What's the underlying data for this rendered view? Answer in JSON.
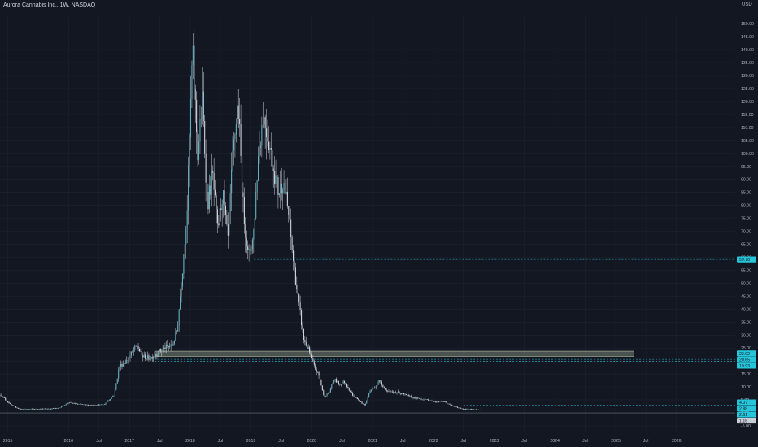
{
  "header": {
    "title": "Aurora Cannabis Inc., 1W, NASDAQ",
    "currency": "USD"
  },
  "colors": {
    "background": "#131722",
    "grid": "#1e222d",
    "axis_text": "#b2b5be",
    "candle": "#5fb3bf",
    "wick": "#d1d4dc",
    "level_line": "#26c6da",
    "zone_fill": "#b5c4a8",
    "last_price": "#c8ccd4"
  },
  "chart_data": {
    "type": "candlestick",
    "title": "Aurora Cannabis Inc., 1W, NASDAQ",
    "ylabel": "USD",
    "ylim": [
      -7.5,
      153.5
    ],
    "xlim": [
      "2014-11-15",
      "2026-12-20"
    ],
    "grid": true,
    "y_ticks": [
      -5,
      0,
      5,
      10,
      15,
      20,
      25,
      30,
      35,
      40,
      45,
      50,
      55,
      60,
      65,
      70,
      75,
      80,
      85,
      90,
      95,
      100,
      105,
      110,
      115,
      120,
      125,
      130,
      135,
      140,
      145,
      150
    ],
    "x_ticks": [
      {
        "label": "2015",
        "date": "2015-01-01"
      },
      {
        "label": "2016",
        "date": "2016-01-01"
      },
      {
        "label": "Jul",
        "date": "2016-07-01"
      },
      {
        "label": "2017",
        "date": "2017-01-01"
      },
      {
        "label": "Jul",
        "date": "2017-07-01"
      },
      {
        "label": "2018",
        "date": "2018-01-01"
      },
      {
        "label": "Jul",
        "date": "2018-07-01"
      },
      {
        "label": "2019",
        "date": "2019-01-01"
      },
      {
        "label": "Jul",
        "date": "2019-07-01"
      },
      {
        "label": "2020",
        "date": "2020-01-01"
      },
      {
        "label": "Jul",
        "date": "2020-07-01"
      },
      {
        "label": "2021",
        "date": "2021-01-01"
      },
      {
        "label": "Jul",
        "date": "2021-07-01"
      },
      {
        "label": "2022",
        "date": "2022-01-01"
      },
      {
        "label": "Jul",
        "date": "2022-07-01"
      },
      {
        "label": "2023",
        "date": "2023-01-01"
      },
      {
        "label": "Jul",
        "date": "2023-07-01"
      },
      {
        "label": "2024",
        "date": "2024-01-01"
      },
      {
        "label": "Jul",
        "date": "2024-07-01"
      },
      {
        "label": "2025",
        "date": "2025-01-01"
      },
      {
        "label": "Jul",
        "date": "2025-07-01"
      },
      {
        "label": "2026",
        "date": "2026-01-01"
      }
    ],
    "price_path": [
      [
        "2014-11-20",
        7.0
      ],
      [
        "2014-12-20",
        5.0
      ],
      [
        "2015-01-20",
        3.0
      ],
      [
        "2015-03-15",
        1.5
      ],
      [
        "2015-06-01",
        1.5
      ],
      [
        "2015-09-01",
        1.6
      ],
      [
        "2015-11-01",
        1.8
      ],
      [
        "2016-01-01",
        4.0
      ],
      [
        "2016-02-15",
        3.5
      ],
      [
        "2016-05-01",
        3.0
      ],
      [
        "2016-08-01",
        3.2
      ],
      [
        "2016-10-01",
        7.0
      ],
      [
        "2016-11-01",
        18.0
      ],
      [
        "2016-12-15",
        20.0
      ],
      [
        "2017-01-15",
        23.0
      ],
      [
        "2017-02-15",
        26.0
      ],
      [
        "2017-03-15",
        22.0
      ],
      [
        "2017-05-01",
        21.0
      ],
      [
        "2017-06-15",
        23.0
      ],
      [
        "2017-08-01",
        25.0
      ],
      [
        "2017-09-15",
        26.0
      ],
      [
        "2017-10-15",
        32.0
      ],
      [
        "2017-11-15",
        55.0
      ],
      [
        "2017-12-15",
        80.0
      ],
      [
        "2018-01-15",
        140.0
      ],
      [
        "2018-02-15",
        100.0
      ],
      [
        "2018-03-15",
        120.0
      ],
      [
        "2018-04-15",
        80.0
      ],
      [
        "2018-05-15",
        92.0
      ],
      [
        "2018-06-15",
        70.0
      ],
      [
        "2018-07-15",
        85.0
      ],
      [
        "2018-08-15",
        66.0
      ],
      [
        "2018-09-15",
        100.0
      ],
      [
        "2018-10-15",
        120.0
      ],
      [
        "2018-11-15",
        80.0
      ],
      [
        "2018-12-15",
        60.0
      ],
      [
        "2019-01-15",
        68.0
      ],
      [
        "2019-02-15",
        100.0
      ],
      [
        "2019-03-15",
        115.0
      ],
      [
        "2019-04-15",
        106.0
      ],
      [
        "2019-05-15",
        95.0
      ],
      [
        "2019-06-15",
        85.0
      ],
      [
        "2019-07-15",
        90.0
      ],
      [
        "2019-08-15",
        76.0
      ],
      [
        "2019-09-15",
        57.0
      ],
      [
        "2019-10-15",
        42.0
      ],
      [
        "2019-11-15",
        28.0
      ],
      [
        "2019-12-15",
        24.0
      ],
      [
        "2020-01-15",
        18.0
      ],
      [
        "2020-02-15",
        14.0
      ],
      [
        "2020-03-15",
        6.0
      ],
      [
        "2020-04-15",
        8.0
      ],
      [
        "2020-05-15",
        13.0
      ],
      [
        "2020-06-15",
        11.0
      ],
      [
        "2020-07-15",
        12.0
      ],
      [
        "2020-09-01",
        7.0
      ],
      [
        "2020-10-15",
        4.5
      ],
      [
        "2020-11-15",
        2.8
      ],
      [
        "2020-12-15",
        8.5
      ],
      [
        "2021-01-15",
        10.0
      ],
      [
        "2021-02-15",
        12.5
      ],
      [
        "2021-03-15",
        9.0
      ],
      [
        "2021-04-15",
        8.0
      ],
      [
        "2021-06-01",
        8.0
      ],
      [
        "2021-08-01",
        6.5
      ],
      [
        "2021-10-01",
        5.5
      ],
      [
        "2021-12-01",
        5.0
      ],
      [
        "2022-01-15",
        4.2
      ],
      [
        "2022-03-01",
        4.5
      ],
      [
        "2022-05-01",
        2.5
      ],
      [
        "2022-07-01",
        1.5
      ],
      [
        "2022-09-01",
        1.3
      ],
      [
        "2022-10-15",
        1.16
      ]
    ],
    "price_labels": [
      {
        "value": 59.18,
        "text": "59.18",
        "style": "level"
      },
      {
        "value": 22.92,
        "text": "22.92",
        "style": "level"
      },
      {
        "value": 20.65,
        "text": "20.65",
        "style": "level"
      },
      {
        "value": 19.93,
        "text": "19.93",
        "style": "level"
      },
      {
        "value": 4.07,
        "text": "4.07",
        "style": "level"
      },
      {
        "value": 2.88,
        "text": "2.88",
        "style": "level"
      },
      {
        "value": 2.61,
        "text": "2.61",
        "style": "level"
      },
      {
        "value": 1.16,
        "text": "1.16",
        "style": "last"
      }
    ],
    "horizontal_lines": [
      {
        "value": 59.18,
        "from": "2019-01-20"
      },
      {
        "value": 20.65,
        "from": "2017-06-01"
      },
      {
        "value": 19.93,
        "from": "2017-06-01"
      },
      {
        "value": 2.88,
        "from": "2022-07-01"
      },
      {
        "value": 2.61,
        "from": "2015-04-01"
      },
      {
        "value": 0.0,
        "from": "2014-11-15",
        "style": "solid"
      }
    ],
    "zone": {
      "from": "2017-06-01",
      "to": "2025-04-20",
      "low": 21.8,
      "high": 23.8
    }
  }
}
